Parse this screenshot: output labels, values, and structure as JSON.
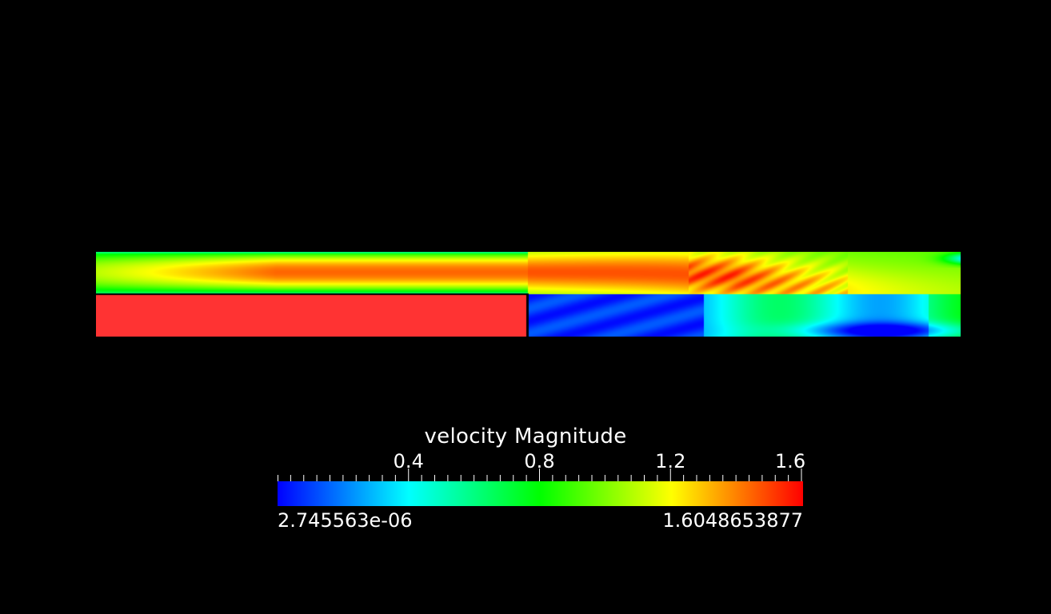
{
  "colorbar": {
    "title": "velocity Magnitude",
    "range": [
      2.745563e-06,
      1.6048653877
    ],
    "min_label": "2.745563e-06",
    "max_label": "1.6048653877",
    "major_ticks": [
      {
        "value": 0.4,
        "label": "0.4"
      },
      {
        "value": 0.8,
        "label": "0.8"
      },
      {
        "value": 1.2,
        "label": "1.2"
      },
      {
        "value": 1.6,
        "label": "1.6"
      }
    ],
    "minor_tick_step": 0.04,
    "colormap": [
      "#0000ff",
      "#00ffff",
      "#00ff00",
      "#ffff00",
      "#ff0000"
    ]
  },
  "scene": {
    "background": "#000000",
    "solid_block_color": "#ff3333",
    "step_edge_color": "#000000"
  }
}
